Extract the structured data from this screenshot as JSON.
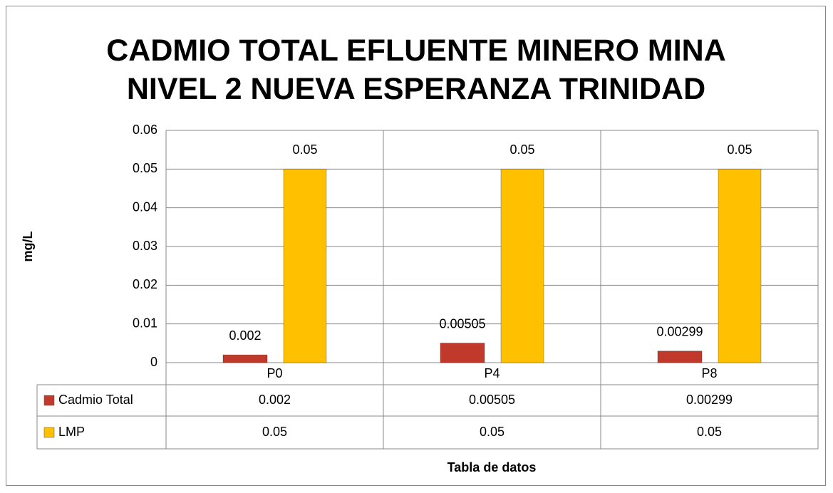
{
  "chart_data": {
    "type": "bar",
    "title": "CADMIO TOTAL EFLUENTE MINERO MINA NIVEL 2 NUEVA ESPERANZA TRINIDAD",
    "y_label": "mg/L",
    "x_label": "Tabla de datos",
    "categories": [
      "P0",
      "P4",
      "P8"
    ],
    "series": [
      {
        "name": "Cadmio Total",
        "color": "#c0392b",
        "values": [
          0.002,
          0.00505,
          0.00299
        ]
      },
      {
        "name": "LMP",
        "color": "#ffc000",
        "values": [
          0.05,
          0.05,
          0.05
        ]
      }
    ],
    "ylim": [
      0,
      0.06
    ],
    "yticks": [
      0,
      0.01,
      0.02,
      0.03,
      0.04,
      0.05,
      0.06
    ],
    "grid": true,
    "data_table": true
  }
}
